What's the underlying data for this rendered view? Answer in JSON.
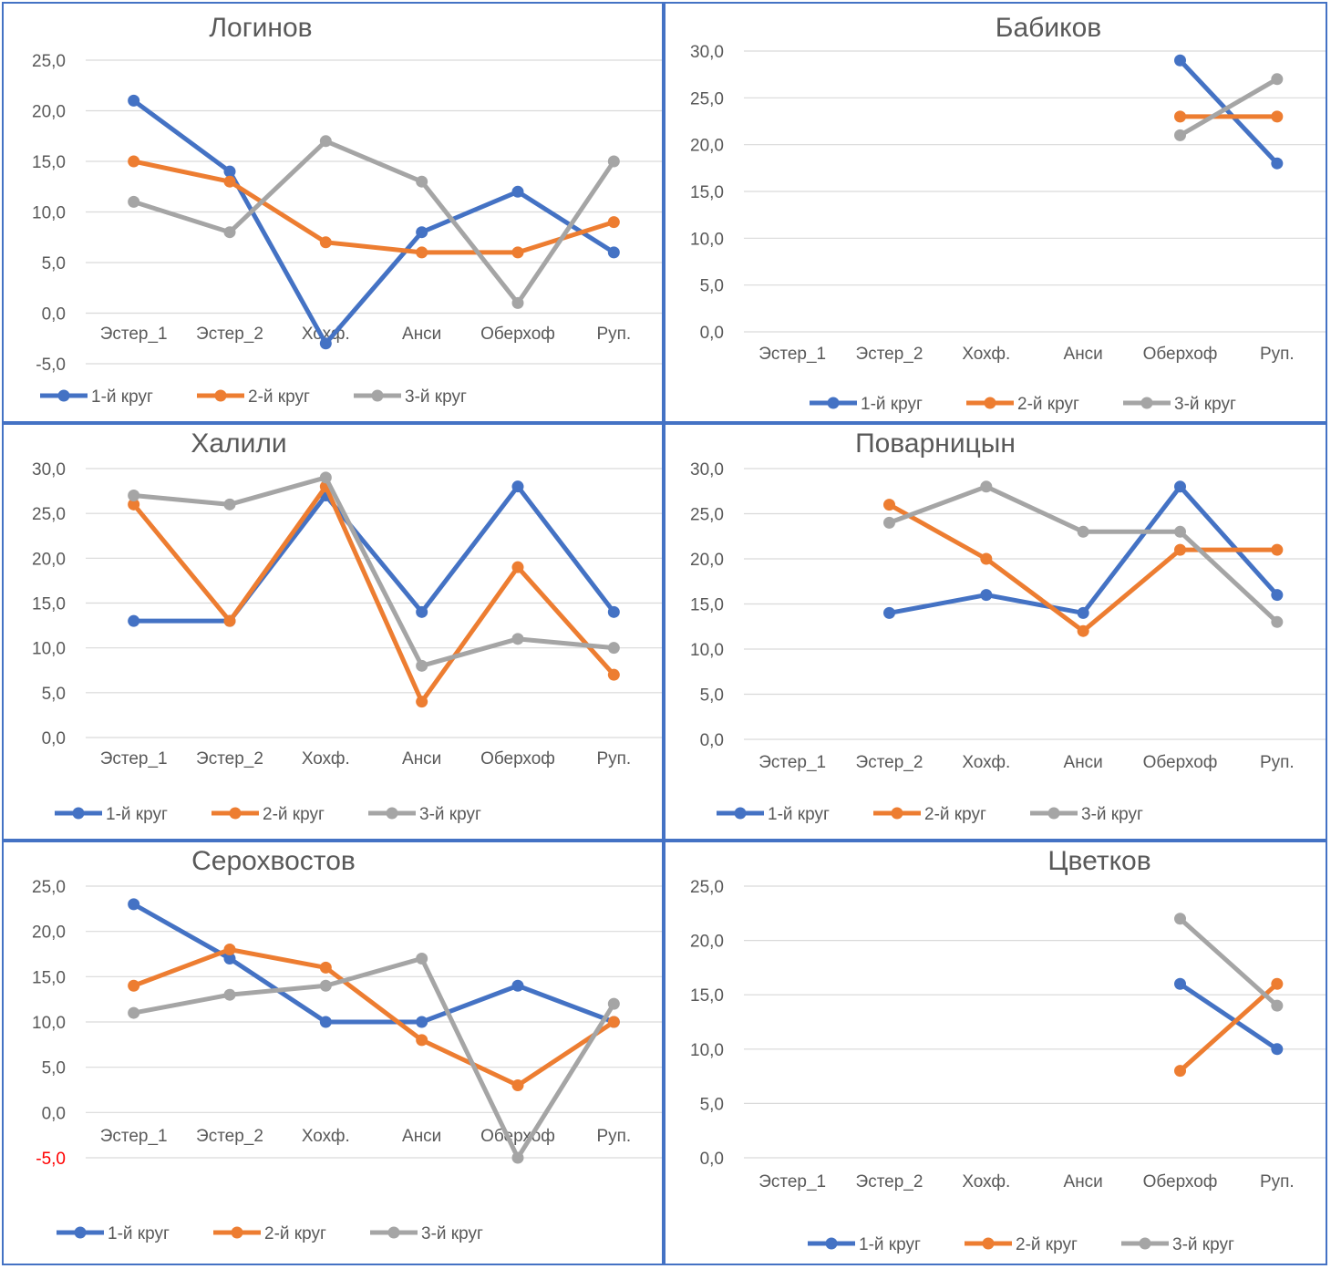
{
  "colors": {
    "series": [
      "#4472C4",
      "#ED7D31",
      "#A5A5A5"
    ],
    "grid": "#D9D9D9",
    "text": "#595959",
    "negative": "#FF0000",
    "border": "#4472C4"
  },
  "chart_data": [
    {
      "type": "line",
      "title": "Логинов",
      "categories": [
        "Эстер_1",
        "Эстер_2",
        "Хохф.",
        "Анси",
        "Оберхоф",
        "Руп."
      ],
      "yticks": [
        "25,0",
        "20,0",
        "15,0",
        "10,0",
        "5,0",
        "0,0",
        "-5,0"
      ],
      "ylim": [
        -5,
        25
      ],
      "series": [
        {
          "name": "1-й круг",
          "values": [
            21,
            14,
            -3,
            8,
            12,
            6
          ]
        },
        {
          "name": "2-й круг",
          "values": [
            15,
            13,
            7,
            6,
            6,
            9
          ]
        },
        {
          "name": "3-й круг",
          "values": [
            11,
            8,
            17,
            13,
            1,
            15
          ]
        }
      ],
      "legend": "bottom",
      "grid": true
    },
    {
      "type": "line",
      "title": "Бабиков",
      "categories": [
        "Эстер_1",
        "Эстер_2",
        "Хохф.",
        "Анси",
        "Оберхоф",
        "Руп."
      ],
      "yticks": [
        "30,0",
        "25,0",
        "20,0",
        "15,0",
        "10,0",
        "5,0",
        "0,0"
      ],
      "ylim": [
        0,
        30
      ],
      "series": [
        {
          "name": "1-й круг",
          "values": [
            null,
            null,
            null,
            null,
            29,
            18
          ]
        },
        {
          "name": "2-й круг",
          "values": [
            null,
            null,
            null,
            null,
            23,
            23
          ]
        },
        {
          "name": "3-й круг",
          "values": [
            null,
            null,
            null,
            null,
            21,
            27
          ]
        }
      ],
      "legend": "bottom",
      "grid": true
    },
    {
      "type": "line",
      "title": "Халили",
      "categories": [
        "Эстер_1",
        "Эстер_2",
        "Хохф.",
        "Анси",
        "Оберхоф",
        "Руп."
      ],
      "yticks": [
        "30,0",
        "25,0",
        "20,0",
        "15,0",
        "10,0",
        "5,0",
        "0,0"
      ],
      "ylim": [
        0,
        30
      ],
      "series": [
        {
          "name": "1-й круг",
          "values": [
            13,
            13,
            27,
            14,
            28,
            14
          ]
        },
        {
          "name": "2-й круг",
          "values": [
            26,
            13,
            28,
            4,
            19,
            7
          ]
        },
        {
          "name": "3-й круг",
          "values": [
            27,
            26,
            29,
            8,
            11,
            10
          ]
        }
      ],
      "legend": "bottom",
      "grid": true
    },
    {
      "type": "line",
      "title": "Поварницын",
      "categories": [
        "Эстер_1",
        "Эстер_2",
        "Хохф.",
        "Анси",
        "Оберхоф",
        "Руп."
      ],
      "yticks": [
        "30,0",
        "25,0",
        "20,0",
        "15,0",
        "10,0",
        "5,0",
        "0,0"
      ],
      "ylim": [
        0,
        30
      ],
      "series": [
        {
          "name": "1-й круг",
          "values": [
            null,
            14,
            16,
            14,
            28,
            16
          ]
        },
        {
          "name": "2-й круг",
          "values": [
            null,
            26,
            20,
            12,
            21,
            21
          ]
        },
        {
          "name": "3-й круг",
          "values": [
            null,
            24,
            28,
            23,
            23,
            13
          ]
        }
      ],
      "legend": "bottom",
      "grid": true
    },
    {
      "type": "line",
      "title": "Серохвостов",
      "categories": [
        "Эстер_1",
        "Эстер_2",
        "Хохф.",
        "Анси",
        "Оберхоф",
        "Руп."
      ],
      "yticks": [
        "25,0",
        "20,0",
        "15,0",
        "10,0",
        "5,0",
        "0,0",
        "-5,0"
      ],
      "ylim": [
        -5,
        25
      ],
      "series": [
        {
          "name": "1-й круг",
          "values": [
            23,
            17,
            10,
            10,
            14,
            10
          ]
        },
        {
          "name": "2-й круг",
          "values": [
            14,
            18,
            16,
            8,
            3,
            10
          ]
        },
        {
          "name": "3-й круг",
          "values": [
            11,
            13,
            14,
            17,
            -5,
            12
          ]
        }
      ],
      "legend": "bottom",
      "grid": true
    },
    {
      "type": "line",
      "title": "Цветков",
      "categories": [
        "Эстер_1",
        "Эстер_2",
        "Хохф.",
        "Анси",
        "Оберхоф",
        "Руп."
      ],
      "yticks": [
        "25,0",
        "20,0",
        "15,0",
        "10,0",
        "5,0",
        "0,0"
      ],
      "ylim": [
        0,
        25
      ],
      "series": [
        {
          "name": "1-й круг",
          "values": [
            null,
            null,
            null,
            null,
            16,
            10
          ]
        },
        {
          "name": "2-й круг",
          "values": [
            null,
            null,
            null,
            null,
            8,
            16
          ]
        },
        {
          "name": "3-й круг",
          "values": [
            null,
            null,
            null,
            null,
            22,
            14
          ]
        }
      ],
      "legend": "bottom",
      "grid": true
    }
  ]
}
